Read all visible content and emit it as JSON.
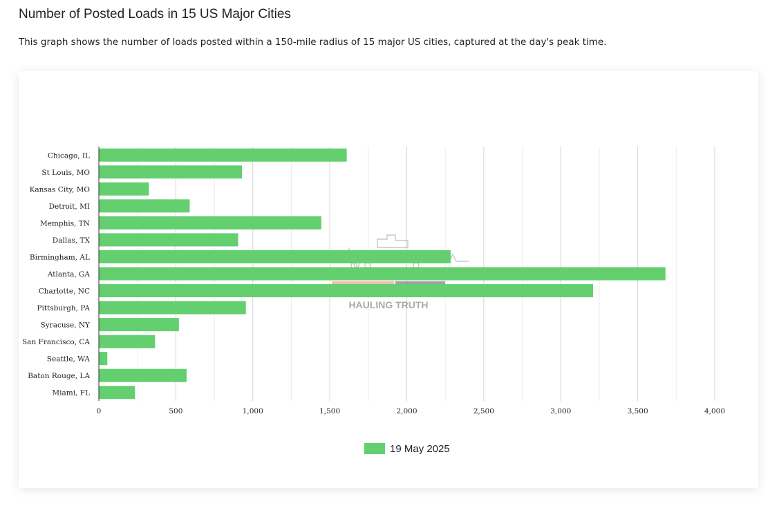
{
  "page": {
    "title": "Number of Posted Loads in 15 US Major Cities",
    "description": "This graph shows the number of loads posted within a 150-mile radius of 15 major US cities, captured at the day's peak time."
  },
  "watermark": {
    "text": "HAULING TRUTH",
    "icon": "truck-icon"
  },
  "colors": {
    "bar": "#63cf6f",
    "grid": "#d4d4d4",
    "axis": "#333333"
  },
  "chart_data": {
    "type": "bar",
    "orientation": "horizontal",
    "title": "",
    "xlabel": "",
    "ylabel": "",
    "categories": [
      "Chicago, IL",
      "St Louis, MO",
      "Kansas City, MO",
      "Detroit, MI",
      "Memphis, TN",
      "Dallas, TX",
      "Birmingham, AL",
      "Atlanta, GA",
      "Charlotte, NC",
      "Pittsburgh, PA",
      "Syracuse, NY",
      "San Francisco, CA",
      "Seattle, WA",
      "Baton Rouge, LA",
      "Miami, FL"
    ],
    "series": [
      {
        "name": "19 May 2025",
        "values": [
          1610,
          930,
          325,
          590,
          1445,
          905,
          2285,
          3680,
          3210,
          955,
          520,
          365,
          55,
          570,
          235
        ]
      }
    ],
    "xlim": [
      0,
      4000
    ],
    "ticks": [
      0,
      500,
      1000,
      1500,
      2000,
      2500,
      3000,
      3500,
      4000
    ],
    "tick_labels": [
      "0",
      "500",
      "1,000",
      "1,500",
      "2,000",
      "2,500",
      "3,000",
      "3,500",
      "4,000"
    ],
    "legend_position": "bottom",
    "grid": true
  }
}
